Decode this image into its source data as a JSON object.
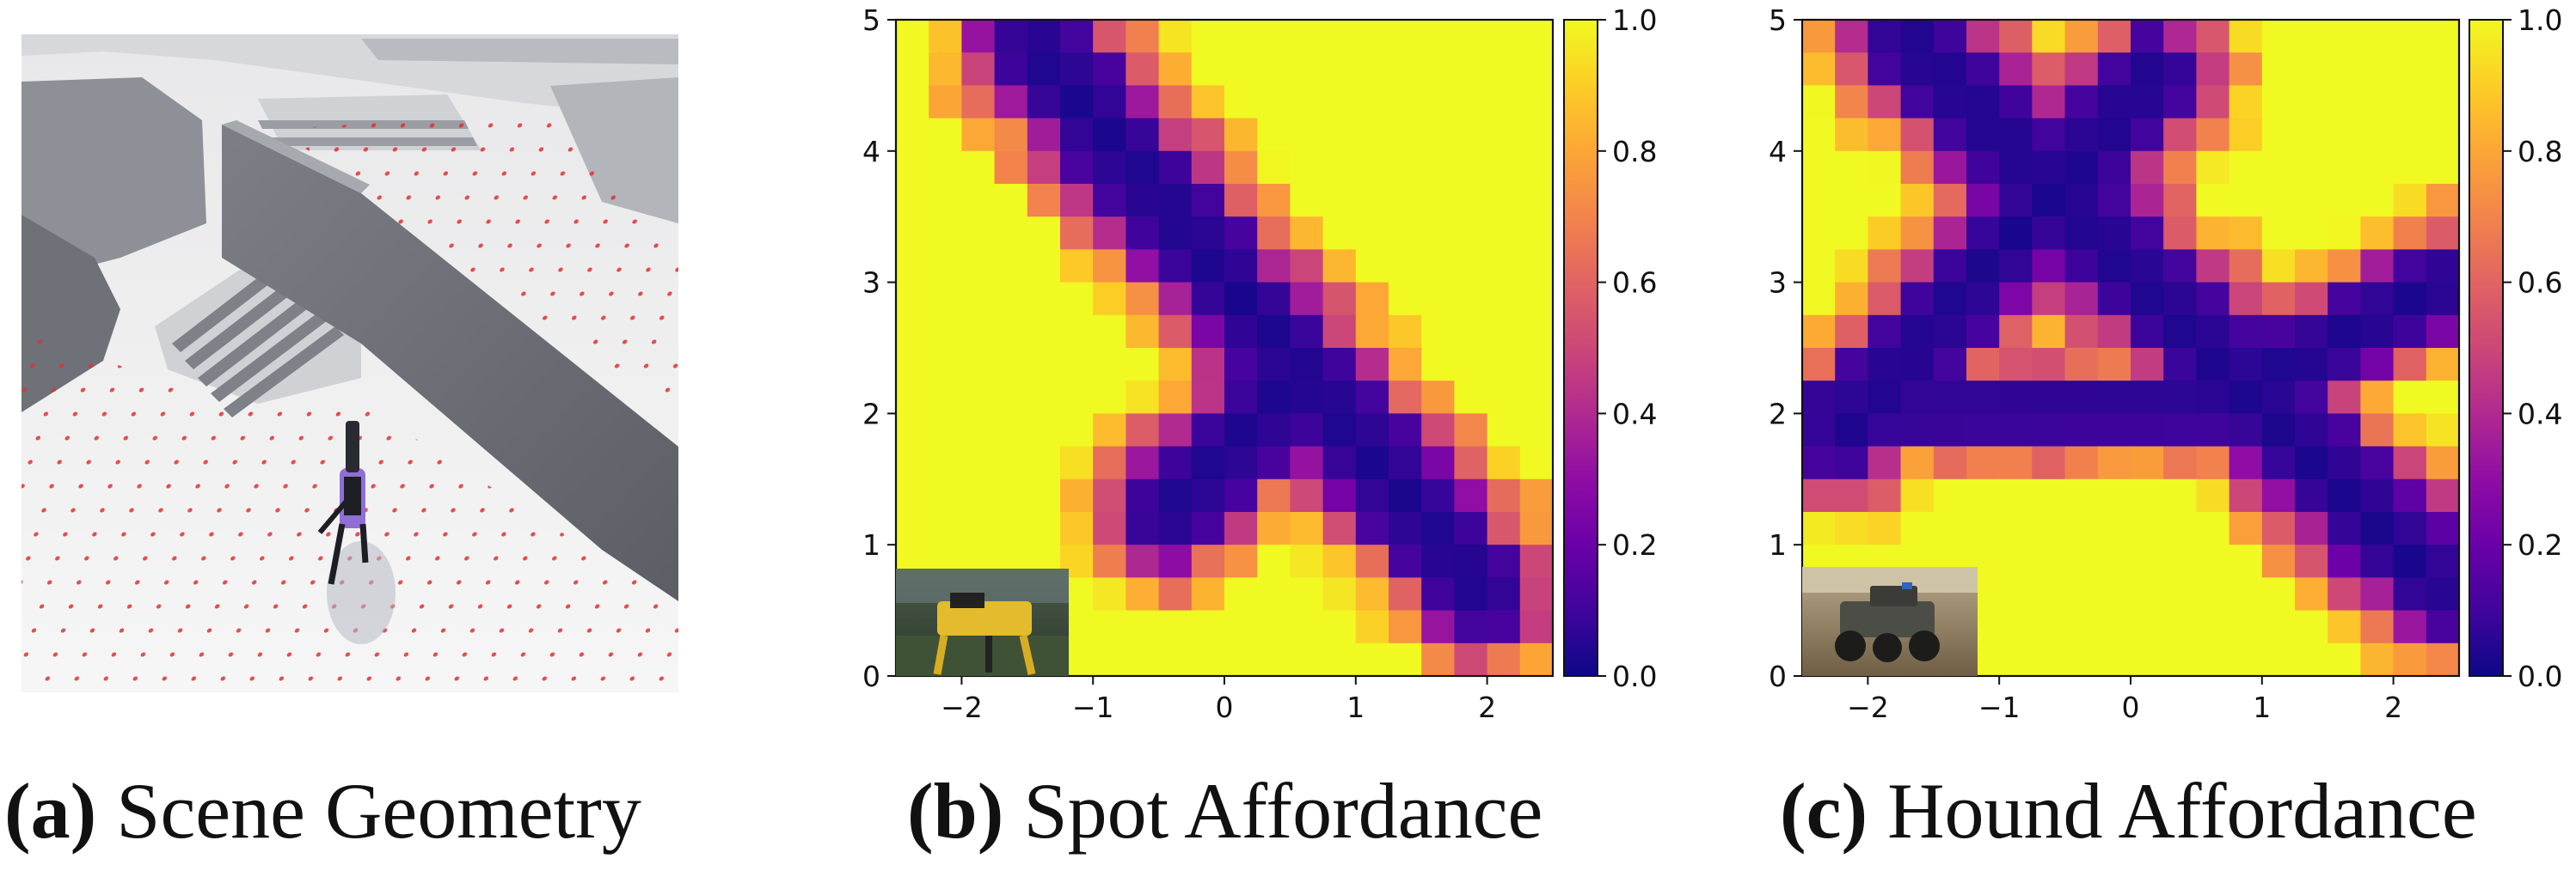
{
  "captions": [
    {
      "letter": "(a)",
      "text": "Scene Geometry"
    },
    {
      "letter": "(b)",
      "text": "Spot Affordance"
    },
    {
      "letter": "(c)",
      "text": "Hound Affordance"
    }
  ],
  "colors": {
    "plasma": [
      "#0d0887",
      "#41049d",
      "#6a00a8",
      "#8f0da4",
      "#b12a90",
      "#cc4778",
      "#e16462",
      "#f2844b",
      "#fca636",
      "#fcce25",
      "#f0f921"
    ],
    "tick": "#111111"
  },
  "chart_data": [
    {
      "type": "heatmap",
      "title": "Spot Affordance",
      "x_range": [
        -2.5,
        2.5
      ],
      "y_range": [
        0,
        5
      ],
      "x_ticks": [
        "−2",
        "−1",
        "0",
        "1",
        "2"
      ],
      "y_ticks": [
        "0",
        "1",
        "2",
        "3",
        "4",
        "5"
      ],
      "colorbar": {
        "range": [
          0,
          1
        ],
        "ticks": [
          "0.0",
          "0.2",
          "0.4",
          "0.6",
          "0.8",
          "1.0"
        ],
        "colormap": "plasma"
      },
      "grid_cols": 20,
      "grid_rows": 20,
      "band_walls": [
        {
          "x0": 1.95,
          "y0": 0.65,
          "x1": -1.45,
          "y1": 4.8,
          "half_width": 0.34
        },
        {
          "x0": -0.45,
          "y0": 1.22,
          "x1": 0.45,
          "y1": 2.15,
          "half_width": 0.32
        }
      ],
      "inset_image": "spot-robot-photo"
    },
    {
      "type": "heatmap",
      "title": "Hound Affordance",
      "x_range": [
        -2.5,
        2.5
      ],
      "y_range": [
        0,
        5
      ],
      "x_ticks": [
        "−2",
        "−1",
        "0",
        "1",
        "2"
      ],
      "y_ticks": [
        "0",
        "1",
        "2",
        "3",
        "4",
        "5"
      ],
      "colorbar": {
        "range": [
          0,
          1
        ],
        "ticks": [
          "0.0",
          "0.2",
          "0.4",
          "0.6",
          "0.8",
          "1.0"
        ],
        "colormap": "plasma"
      },
      "grid_cols": 20,
      "grid_rows": 20,
      "band_walls": [
        {
          "x0": 2.3,
          "y0": 0.7,
          "x1": -1.7,
          "y1": 4.85,
          "half_width": 0.34
        },
        {
          "x0": -2.2,
          "y0": 1.85,
          "x1": 0.2,
          "y1": 4.6,
          "half_width": 0.32
        },
        {
          "x0": -2.5,
          "y0": 2.0,
          "x1": 1.2,
          "y1": 2.05,
          "half_width": 0.22
        },
        {
          "x0": 0.9,
          "y0": 2.2,
          "x1": 2.4,
          "y1": 3.0,
          "half_width": 0.28
        }
      ],
      "inset_image": "hound-robot-photo"
    }
  ]
}
